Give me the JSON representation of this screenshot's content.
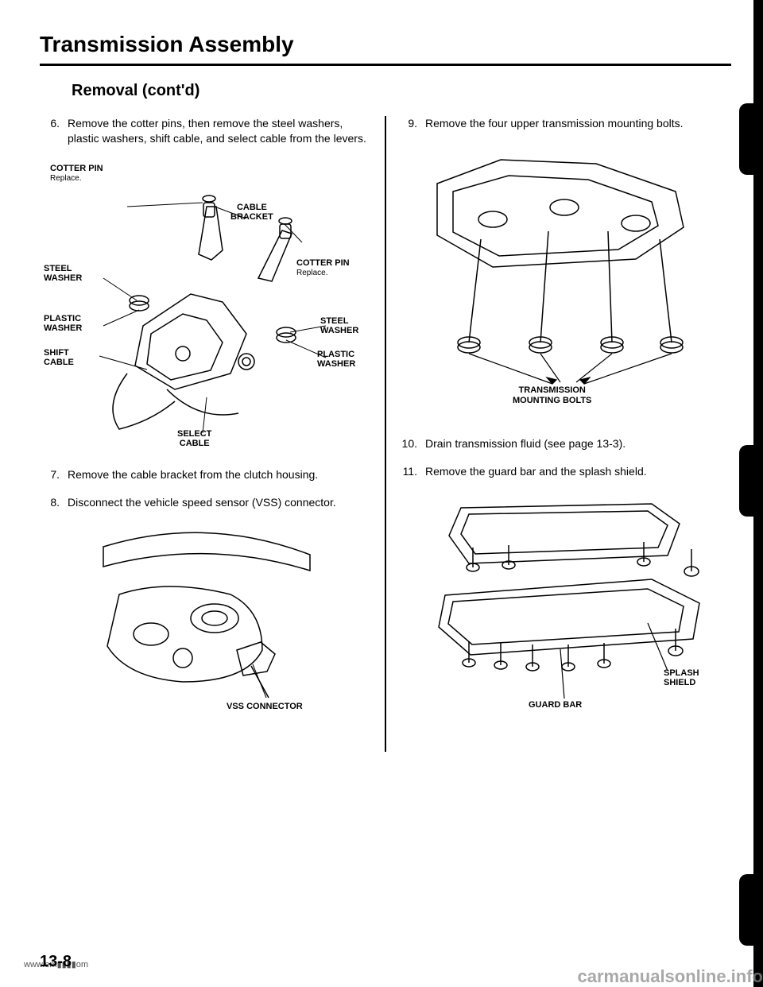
{
  "title": "Transmission Assembly",
  "subtitle": "Removal (cont'd)",
  "left": {
    "step6_num": "6.",
    "step6_text": "Remove the cotter pins, then remove the steel washers, plastic washers, shift cable, and select cable from the levers.",
    "step7_num": "7.",
    "step7_text": "Remove the cable bracket from the clutch housing.",
    "step8_num": "8.",
    "step8_text": "Disconnect the vehicle speed sensor (VSS) connector."
  },
  "right": {
    "step9_num": "9.",
    "step9_text": "Remove the four upper transmission mounting bolts.",
    "step10_num": "10.",
    "step10_text": "Drain transmission fluid (see page 13-3).",
    "step11_num": "11.",
    "step11_text": "Remove the guard bar and the splash shield."
  },
  "diagram1": {
    "cotter_pin_l": "COTTER PIN",
    "replace": "Replace.",
    "cable_bracket": "CABLE\nBRACKET",
    "steel_washer_l": "STEEL\nWASHER",
    "cotter_pin_r": "COTTER PIN",
    "plastic_washer_l": "PLASTIC\nWASHER",
    "shift_cable": "SHIFT\nCABLE",
    "steel_washer_r": "STEEL\nWASHER",
    "plastic_washer_r": "PLASTIC\nWASHER",
    "select_cable": "SELECT\nCABLE"
  },
  "diagram2": {
    "vss_connector": "VSS CONNECTOR"
  },
  "diagram3": {
    "mounting_bolts": "TRANSMISSION\nMOUNTING BOLTS"
  },
  "diagram4": {
    "guard_bar": "GUARD BAR",
    "splash_shield": "SPLASH\nSHIELD"
  },
  "page_num": "13-8",
  "watermark": "carmanualsonline.info",
  "url_left": "www.em",
  "url_right": "om"
}
